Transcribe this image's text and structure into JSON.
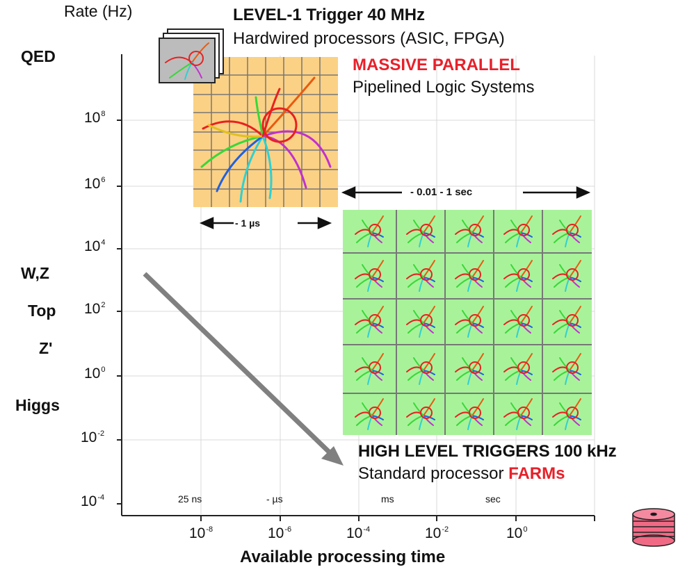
{
  "y_axis": {
    "title": "Rate (Hz)",
    "ticks": [
      {
        "base": "10",
        "exp": "8"
      },
      {
        "base": "10",
        "exp": "6"
      },
      {
        "base": "10",
        "exp": "4"
      },
      {
        "base": "10",
        "exp": "2"
      },
      {
        "base": "10",
        "exp": "0"
      },
      {
        "base": "10",
        "exp": "-2"
      },
      {
        "base": "10",
        "exp": "-4"
      }
    ]
  },
  "x_axis": {
    "title": "Available processing time",
    "ticks": [
      {
        "base": "10",
        "exp": "-8"
      },
      {
        "base": "10",
        "exp": "-6"
      },
      {
        "base": "10",
        "exp": "-4"
      },
      {
        "base": "10",
        "exp": "-2"
      },
      {
        "base": "10",
        "exp": "0"
      }
    ],
    "time_labels": [
      "25 ns",
      "- µs",
      "ms",
      "sec"
    ]
  },
  "physics": {
    "qed": "QED",
    "wz": "W,Z",
    "top": "Top",
    "zprime": "Z'",
    "higgs": "Higgs"
  },
  "level1": {
    "title": "LEVEL-1 Trigger 40 MHz",
    "line1": "Hardwired processors  (ASIC, FPGA)",
    "line2": "MASSIVE PARALLEL",
    "line3": "Pipelined Logic Systems",
    "span": "- 1 µs"
  },
  "hlt": {
    "title_main": "HIGH LEVEL TRIGGER",
    "title_s": "S",
    "title_rate": " 100 kHz",
    "line1": "Standard processor ",
    "line1_red": "FARMs",
    "span": "- 0.01 - 1 sec"
  },
  "colors": {
    "orange_panel": "#fbd185",
    "green_panel": "#a8f29a",
    "red_text": "#e8202a",
    "arrow_gray": "#808080",
    "disk_pink": "#f06a86"
  }
}
